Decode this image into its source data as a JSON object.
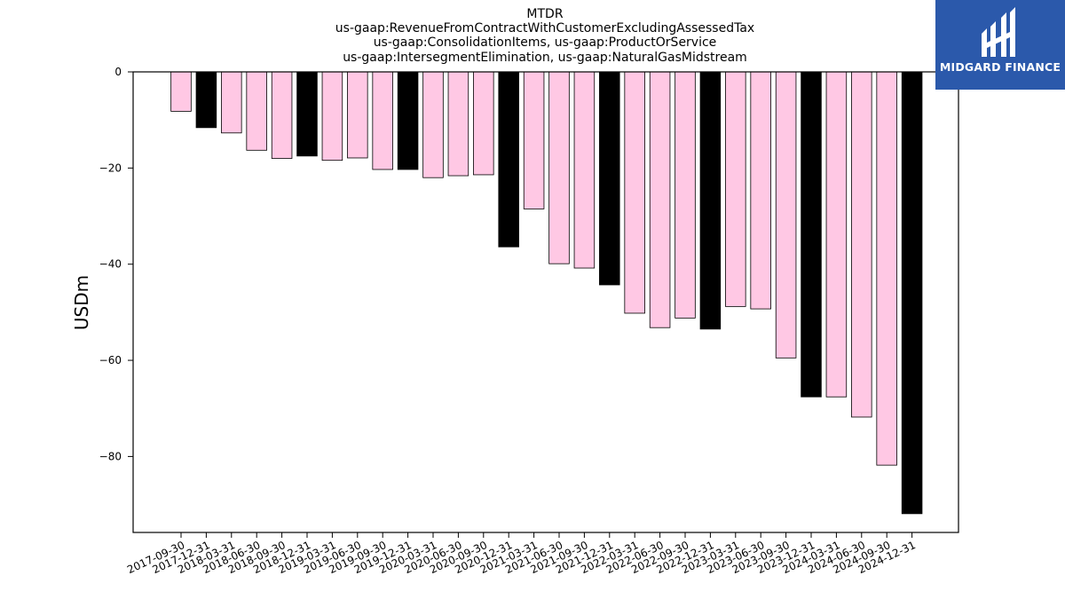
{
  "chart_data": {
    "type": "bar",
    "title": [
      "MTDR",
      "us-gaap:RevenueFromContractWithCustomerExcludingAssessedTax",
      "us-gaap:ConsolidationItems, us-gaap:ProductOrService",
      "us-gaap:IntersegmentElimination, us-gaap:NaturalGasMidstream"
    ],
    "xlabel": "",
    "ylabel": "USDm",
    "ylim": [
      -95.8,
      0
    ],
    "yticks": [
      0,
      -20,
      -40,
      -60,
      -80
    ],
    "grid": false,
    "categories": [
      "2017-09-30",
      "2017-12-31",
      "2018-03-31",
      "2018-06-30",
      "2018-09-30",
      "2018-12-31",
      "2019-03-31",
      "2019-06-30",
      "2019-09-30",
      "2019-12-31",
      "2020-03-31",
      "2020-06-30",
      "2020-09-30",
      "2020-12-31",
      "2021-03-31",
      "2021-06-30",
      "2021-09-30",
      "2021-12-31",
      "2022-03-31",
      "2022-06-30",
      "2022-09-30",
      "2022-12-31",
      "2023-03-31",
      "2023-06-30",
      "2023-09-30",
      "2023-12-31",
      "2024-03-31",
      "2024-06-30",
      "2024-09-30",
      "2024-12-31"
    ],
    "values": [
      -8.2,
      -11.6,
      -12.7,
      -16.3,
      -18.0,
      -17.5,
      -18.4,
      -17.9,
      -20.3,
      -20.3,
      -22.0,
      -21.6,
      -21.4,
      -36.4,
      -28.5,
      -39.9,
      -40.8,
      -44.3,
      -50.2,
      -53.2,
      -51.2,
      -53.5,
      -48.8,
      -49.3,
      -59.5,
      -67.6,
      -67.6,
      -71.8,
      -81.8,
      -91.9
    ],
    "bar_colors": {
      "quarter": "#ffc8e4",
      "year_end": "#000000",
      "edge": "#000000"
    }
  },
  "logo": {
    "text": "MIDGARD FINANCE",
    "color": "#2b59ab"
  }
}
